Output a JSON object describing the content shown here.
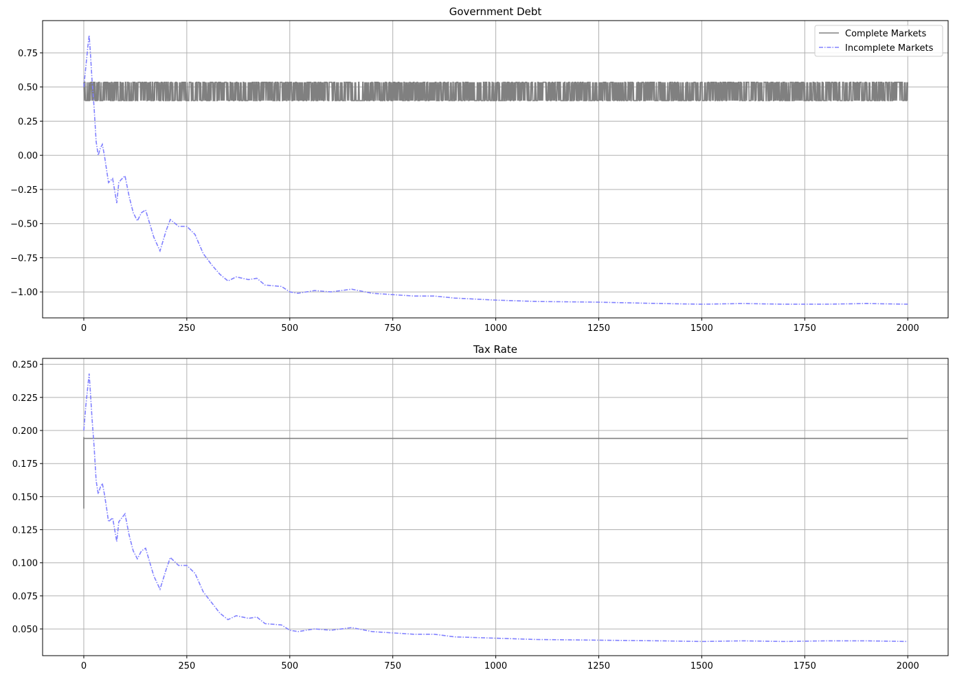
{
  "chart_data": [
    {
      "type": "line",
      "title": "Government Debt",
      "xlabel": "",
      "ylabel": "",
      "xlim": [
        -100,
        2098
      ],
      "ylim": [
        -1.19,
        0.986
      ],
      "xticks": [
        0,
        250,
        500,
        750,
        1000,
        1250,
        1500,
        1750,
        2000
      ],
      "yticks": [
        -1.0,
        -0.75,
        -0.5,
        -0.25,
        0.0,
        0.25,
        0.5,
        0.75
      ],
      "ytick_labels": [
        "−1.00",
        "−0.75",
        "−0.50",
        "−0.25",
        "0.00",
        "0.25",
        "0.50",
        "0.75"
      ],
      "grid": true,
      "legend": "top-right",
      "series": [
        {
          "name": "Complete Markets",
          "color": "#808080",
          "style": "solid",
          "switching_between": [
            0.4,
            0.535
          ],
          "x_range": [
            0,
            2000
          ]
        },
        {
          "name": "Incomplete Markets",
          "color": "#8080ff",
          "style": "dashdot",
          "x": [
            0,
            5,
            10,
            13,
            16,
            20,
            25,
            30,
            35,
            40,
            45,
            50,
            55,
            60,
            70,
            80,
            85,
            90,
            100,
            110,
            120,
            130,
            140,
            150,
            160,
            170,
            185,
            200,
            210,
            230,
            250,
            270,
            290,
            310,
            330,
            350,
            370,
            400,
            420,
            440,
            480,
            500,
            520,
            560,
            600,
            650,
            700,
            750,
            800,
            850,
            900,
            1000,
            1100,
            1250,
            1400,
            1500,
            1600,
            1700,
            1800,
            1900,
            2000
          ],
          "y": [
            0.5,
            0.65,
            0.8,
            0.88,
            0.75,
            0.55,
            0.35,
            0.1,
            0,
            0.05,
            0.08,
            0,
            -0.1,
            -0.2,
            -0.17,
            -0.35,
            -0.2,
            -0.18,
            -0.15,
            -0.3,
            -0.42,
            -0.48,
            -0.42,
            -0.4,
            -0.5,
            -0.6,
            -0.7,
            -0.55,
            -0.47,
            -0.52,
            -0.52,
            -0.58,
            -0.72,
            -0.8,
            -0.87,
            -0.92,
            -0.89,
            -0.91,
            -0.9,
            -0.95,
            -0.96,
            -1.0,
            -1.01,
            -0.99,
            -1.0,
            -0.98,
            -1.01,
            -1.02,
            -1.03,
            -1.03,
            -1.045,
            -1.06,
            -1.07,
            -1.075,
            -1.085,
            -1.09,
            -1.085,
            -1.09,
            -1.09,
            -1.085,
            -1.09
          ]
        }
      ]
    },
    {
      "type": "line",
      "title": "Tax Rate",
      "xlabel": "",
      "ylabel": "",
      "xlim": [
        -100,
        2098
      ],
      "ylim": [
        0.0298,
        0.2545
      ],
      "xticks": [
        0,
        250,
        500,
        750,
        1000,
        1250,
        1500,
        1750,
        2000
      ],
      "yticks": [
        0.05,
        0.075,
        0.1,
        0.125,
        0.15,
        0.175,
        0.2,
        0.225,
        0.25
      ],
      "ytick_labels": [
        "0.050",
        "0.075",
        "0.100",
        "0.125",
        "0.150",
        "0.175",
        "0.200",
        "0.225",
        "0.250"
      ],
      "grid": true,
      "series": [
        {
          "name": "Complete Markets",
          "color": "#808080",
          "style": "solid",
          "x": [
            0,
            0,
            0,
            2000
          ],
          "y": [
            0.141,
            0.195,
            0.194,
            0.194
          ]
        },
        {
          "name": "Incomplete Markets",
          "color": "#8080ff",
          "style": "dashdot",
          "x": [
            0,
            5,
            10,
            13,
            16,
            20,
            25,
            30,
            35,
            40,
            45,
            50,
            55,
            60,
            70,
            80,
            85,
            90,
            100,
            110,
            120,
            130,
            140,
            150,
            160,
            170,
            185,
            200,
            210,
            230,
            250,
            270,
            290,
            310,
            330,
            350,
            370,
            400,
            420,
            440,
            480,
            500,
            520,
            560,
            600,
            650,
            700,
            750,
            800,
            850,
            900,
            1000,
            1100,
            1250,
            1400,
            1500,
            1600,
            1700,
            1800,
            1900,
            2000
          ],
          "y": [
            0.2,
            0.219,
            0.234,
            0.243,
            0.229,
            0.209,
            0.188,
            0.162,
            0.152,
            0.157,
            0.16,
            0.152,
            0.142,
            0.131,
            0.134,
            0.116,
            0.131,
            0.133,
            0.137,
            0.121,
            0.109,
            0.103,
            0.109,
            0.111,
            0.1005,
            0.09,
            0.08,
            0.095,
            0.104,
            0.098,
            0.098,
            0.092,
            0.078,
            0.07,
            0.062,
            0.057,
            0.06,
            0.058,
            0.059,
            0.054,
            0.053,
            0.049,
            0.048,
            0.05,
            0.049,
            0.051,
            0.048,
            0.047,
            0.046,
            0.046,
            0.044,
            0.043,
            0.042,
            0.0415,
            0.041,
            0.0405,
            0.041,
            0.0405,
            0.041,
            0.041,
            0.0405
          ]
        }
      ]
    }
  ]
}
